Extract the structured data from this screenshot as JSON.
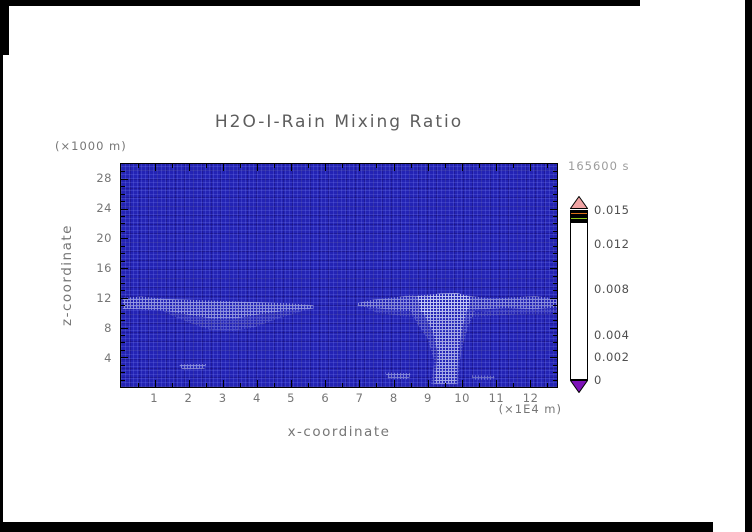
{
  "window": {
    "background": "#ffffff",
    "frame_color": "#000000"
  },
  "chart_data": {
    "type": "heatmap",
    "title": "H2O-I-Rain Mixing Ratio",
    "time_label": "165600 s",
    "x_axis": {
      "label": "x-coordinate",
      "units_label": "(×1E4 m)",
      "ticks": [
        1,
        2,
        3,
        4,
        5,
        6,
        7,
        8,
        9,
        10,
        11,
        12
      ],
      "range": [
        0,
        12.8
      ],
      "minor_tick_step": 0.5
    },
    "z_axis": {
      "label": "z-coordinate",
      "units_label": "(×1000 m)",
      "ticks": [
        4,
        8,
        12,
        16,
        20,
        24,
        28
      ],
      "range": [
        0,
        30
      ],
      "minor_tick_step": 1
    },
    "colorbar": {
      "range": [
        0,
        0.015
      ],
      "tick_values": [
        0,
        0.002,
        0.004,
        0.008,
        0.012,
        0.015
      ],
      "tick_labels": [
        "0",
        "0.002",
        "0.004",
        "0.008",
        "0.012",
        "0.015"
      ],
      "over_arrow_color": "#f0a4a4",
      "under_arrow_color": "#7d12b8",
      "bands": [
        {
          "from": 0.0,
          "to": 0.0013,
          "color": "#1b1b9e"
        },
        {
          "from": 0.0013,
          "to": 0.0023,
          "color": "#2543ea"
        },
        {
          "from": 0.0023,
          "to": 0.0032,
          "color": "#1e9bf2"
        },
        {
          "from": 0.0032,
          "to": 0.0043,
          "color": "#14dc9a"
        },
        {
          "from": 0.0043,
          "to": 0.0063,
          "color": "#9fdf1e"
        },
        {
          "from": 0.0063,
          "to": 0.0078,
          "color": "#f8f200"
        },
        {
          "from": 0.0078,
          "to": 0.0092,
          "color": "#fbb713"
        },
        {
          "from": 0.0092,
          "to": 0.011,
          "color": "#f79a16"
        },
        {
          "from": 0.011,
          "to": 0.0125,
          "color": "#f47d1a"
        },
        {
          "from": 0.0125,
          "to": 0.0141,
          "color": "#ef541e"
        },
        {
          "from": 0.0141,
          "to": 0.015,
          "color": "#f2716b"
        }
      ]
    },
    "field": {
      "background_color": "#2323b4",
      "background_value": "≈ 0 (below lowest contour level)",
      "features": [
        {
          "name": "left-cloud-band",
          "value_band": "0–0.002",
          "intensity": 0.55,
          "polygon": [
            [
              0.05,
              12.0
            ],
            [
              0.6,
              12.15
            ],
            [
              1.3,
              11.85
            ],
            [
              2.2,
              11.7
            ],
            [
              3.1,
              11.55
            ],
            [
              4.1,
              11.4
            ],
            [
              5.0,
              11.25
            ],
            [
              5.65,
              11.0
            ],
            [
              5.65,
              10.55
            ],
            [
              4.9,
              10.3
            ],
            [
              4.1,
              9.8
            ],
            [
              3.4,
              9.25
            ],
            [
              2.7,
              9.2
            ],
            [
              2.0,
              9.7
            ],
            [
              1.3,
              10.25
            ],
            [
              0.6,
              10.45
            ],
            [
              0.05,
              10.5
            ]
          ]
        },
        {
          "name": "left-cloud-lower-wedge",
          "value_band": "0–0.001",
          "intensity": 0.2,
          "polygon": [
            [
              1.2,
              10.3
            ],
            [
              2.0,
              9.8
            ],
            [
              2.7,
              9.25
            ],
            [
              3.4,
              9.3
            ],
            [
              4.1,
              9.85
            ],
            [
              5.0,
              10.3
            ],
            [
              5.6,
              10.6
            ],
            [
              4.6,
              9.2
            ],
            [
              3.9,
              8.0
            ],
            [
              3.3,
              7.55
            ],
            [
              2.6,
              7.7
            ],
            [
              2.1,
              8.5
            ],
            [
              1.6,
              9.4
            ]
          ]
        },
        {
          "name": "right-cloud-band",
          "value_band": "0–0.002",
          "intensity": 0.5,
          "polygon": [
            [
              6.95,
              11.3
            ],
            [
              7.4,
              11.75
            ],
            [
              8.1,
              12.1
            ],
            [
              8.5,
              12.35
            ],
            [
              8.95,
              12.1
            ],
            [
              9.35,
              12.6
            ],
            [
              9.85,
              12.65
            ],
            [
              10.3,
              12.2
            ],
            [
              10.9,
              11.9
            ],
            [
              11.5,
              12.05
            ],
            [
              12.15,
              12.2
            ],
            [
              12.8,
              11.9
            ],
            [
              12.8,
              10.7
            ],
            [
              12.1,
              10.45
            ],
            [
              11.3,
              10.6
            ],
            [
              10.5,
              10.45
            ],
            [
              9.7,
              10.25
            ],
            [
              8.9,
              10.1
            ],
            [
              8.1,
              10.3
            ],
            [
              7.4,
              10.65
            ],
            [
              6.95,
              10.9
            ]
          ]
        },
        {
          "name": "right-cloud-core",
          "value_band": "0–0.002",
          "intensity": 0.65,
          "polygon": [
            [
              8.7,
              12.3
            ],
            [
              9.3,
              12.55
            ],
            [
              9.9,
              12.6
            ],
            [
              10.25,
              12.1
            ],
            [
              10.2,
              10.2
            ],
            [
              8.8,
              10.1
            ]
          ]
        },
        {
          "name": "right-cloud-lower-faint",
          "value_band": "0–0.001",
          "intensity": 0.18,
          "polygon": [
            [
              7.2,
              10.7
            ],
            [
              8.3,
              10.15
            ],
            [
              9.0,
              9.9
            ],
            [
              10.0,
              9.9
            ],
            [
              11.0,
              10.3
            ],
            [
              12.8,
              10.55
            ],
            [
              12.8,
              9.9
            ],
            [
              11.5,
              9.75
            ],
            [
              10.3,
              9.4
            ],
            [
              9.3,
              9.3
            ],
            [
              8.3,
              9.5
            ],
            [
              7.5,
              10.0
            ]
          ]
        },
        {
          "name": "rain-shaft-outer",
          "value_band": "0–0.001",
          "intensity": 0.28,
          "polygon": [
            [
              8.5,
              10.3
            ],
            [
              10.4,
              10.3
            ],
            [
              10.2,
              8.2
            ],
            [
              10.05,
              6.0
            ],
            [
              9.95,
              3.5
            ],
            [
              9.9,
              0.35
            ],
            [
              9.1,
              0.35
            ],
            [
              9.2,
              3.5
            ],
            [
              9.0,
              6.5
            ],
            [
              8.7,
              8.5
            ]
          ]
        },
        {
          "name": "rain-shaft-core",
          "value_band": "0–0.002",
          "intensity": 0.55,
          "polygon": [
            [
              8.85,
              10.2
            ],
            [
              10.15,
              10.2
            ],
            [
              10.0,
              7.5
            ],
            [
              9.9,
              4.5
            ],
            [
              9.85,
              0.45
            ],
            [
              9.2,
              0.45
            ],
            [
              9.3,
              4.5
            ],
            [
              9.15,
              7.5
            ]
          ]
        },
        {
          "name": "small-patch-left",
          "value_band": "0–0.001",
          "intensity": 0.5,
          "polygon": [
            [
              1.7,
              3.05
            ],
            [
              2.5,
              3.1
            ],
            [
              2.45,
              2.45
            ],
            [
              1.8,
              2.35
            ]
          ]
        },
        {
          "name": "small-patch-mid",
          "value_band": "0–0.001",
          "intensity": 0.45,
          "polygon": [
            [
              7.75,
              1.95
            ],
            [
              8.5,
              1.85
            ],
            [
              8.45,
              1.05
            ],
            [
              7.85,
              1.15
            ]
          ]
        },
        {
          "name": "small-patch-right",
          "value_band": "0–0.001",
          "intensity": 0.38,
          "polygon": [
            [
              10.25,
              1.6
            ],
            [
              11.0,
              1.5
            ],
            [
              10.9,
              0.95
            ],
            [
              10.35,
              1.0
            ]
          ]
        }
      ]
    }
  }
}
